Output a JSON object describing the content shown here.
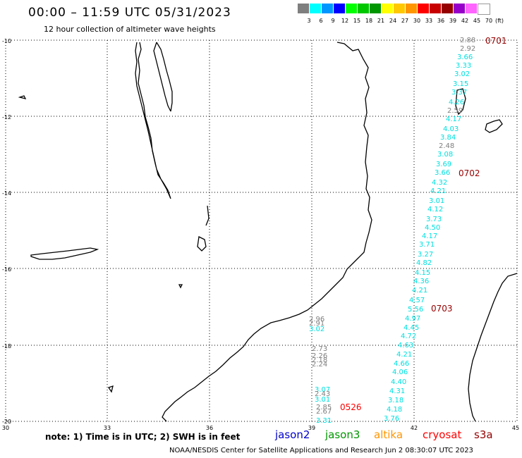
{
  "title": "00:00 – 11:59 UTC 05/31/2023",
  "subtitle": "12 hour collection of altimeter wave heights",
  "color_scale": {
    "labels": [
      "3",
      "6",
      "9",
      "12",
      "15",
      "18",
      "21",
      "24",
      "27",
      "30",
      "33",
      "36",
      "39",
      "42",
      "45",
      "70"
    ],
    "colors": [
      "#7f7f7f",
      "#00ffff",
      "#0096ff",
      "#0000ff",
      "#00ff00",
      "#00c800",
      "#009600",
      "#ffff00",
      "#ffc800",
      "#ff9600",
      "#ff0000",
      "#c80000",
      "#960000",
      "#9600c8",
      "#ff64ff",
      "#ffffff"
    ],
    "unit": "(ft)"
  },
  "map": {
    "lat_labels": [
      "-10",
      "-12",
      "-14",
      "-16",
      "-18",
      "-20"
    ],
    "lon_labels": [
      "30",
      "33",
      "36",
      "39",
      "42",
      "45"
    ]
  },
  "observations": {
    "track_a": [
      "2.88",
      "2.92",
      "3.66",
      "3.33",
      "3.02",
      "3.15",
      "3.37",
      "4.26",
      "2.59",
      "4.17",
      "4.03",
      "3.84",
      "2.48",
      "3.08",
      "3.69",
      "3.66",
      "4.32",
      "4.21",
      "3.01",
      "4.12",
      "3.73",
      "4.50",
      "4.17",
      "3.71",
      "3.27",
      "4.82",
      "4.15",
      "4.36",
      "4.21",
      "4.57",
      "5.56",
      "4.97",
      "4.45",
      "4.72",
      "4.63",
      "4.21",
      "4.66",
      "4.06",
      "4.40",
      "4.31",
      "3.18",
      "4.18",
      "3.76"
    ],
    "track_b": [
      "2.96",
      "2.91",
      "3.02",
      "2.73",
      "2.26",
      "2.18",
      "2.24",
      "3.07",
      "2.43",
      "3.01",
      "2.85",
      "2.67",
      "3.31"
    ]
  },
  "time_labels": [
    "0701",
    "0702",
    "0703",
    "0526"
  ],
  "note": "note: 1) Time is in UTC; 2) SWH is in feet",
  "legend": [
    {
      "name": "jason2",
      "color": "#0000cc"
    },
    {
      "name": "jason3",
      "color": "#009600"
    },
    {
      "name": "altika",
      "color": "#ff9600"
    },
    {
      "name": "cryosat",
      "color": "#ff0000"
    },
    {
      "name": "s3a",
      "color": "#960000"
    }
  ],
  "credit": "NOAA/NESDIS Center for Satellite Applications and Research   Jun  2 08:30:07 UTC 2023"
}
